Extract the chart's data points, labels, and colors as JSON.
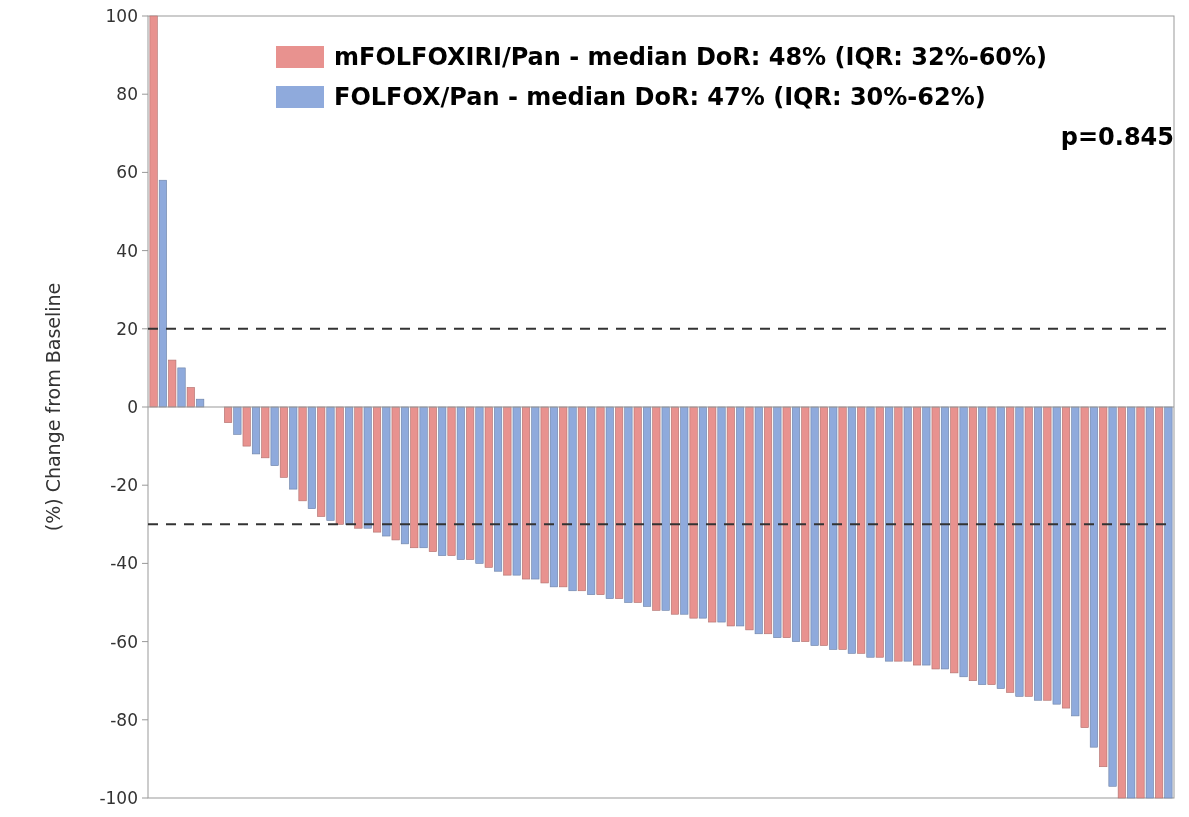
{
  "chart_data": {
    "type": "bar",
    "ylabel": "(%) Change from Baseline",
    "categories": [
      null,
      null,
      null,
      null,
      null,
      null,
      null,
      null,
      null,
      null,
      null,
      null,
      null,
      null,
      null,
      null,
      null,
      null,
      null,
      null,
      null,
      null,
      null,
      null,
      null,
      null,
      null,
      null,
      null,
      null,
      null,
      null,
      null,
      null,
      null,
      null,
      null,
      null,
      null,
      null,
      null,
      null,
      null,
      null,
      null,
      null,
      null,
      null,
      null,
      null,
      null,
      null,
      null,
      null,
      null,
      null,
      null,
      null,
      null,
      null,
      null,
      null,
      null,
      null,
      null,
      null,
      null,
      null,
      null,
      null,
      null,
      null,
      null,
      null,
      null,
      null,
      null,
      null,
      null,
      null,
      null,
      null,
      null,
      null,
      null,
      null,
      null,
      null,
      null,
      null,
      null,
      null,
      null,
      null,
      null,
      null,
      null,
      null,
      null,
      null,
      null,
      null,
      null,
      null,
      null,
      null,
      null,
      null,
      null,
      null
    ],
    "series": [
      {
        "name": "mFOLFOXIRI/Pan - median DoR: 48% (IQR: 32%-60%)",
        "color": "#e8928f",
        "values": [
          100,
          null,
          12,
          null,
          5,
          null,
          0,
          null,
          -4,
          null,
          -10,
          null,
          -13,
          null,
          -18,
          null,
          -24,
          null,
          -28,
          null,
          -30,
          null,
          -31,
          null,
          -32,
          null,
          -34,
          null,
          -36,
          null,
          -37,
          null,
          -38,
          null,
          -39,
          null,
          -41,
          null,
          -43,
          null,
          -44,
          null,
          -45,
          null,
          -46,
          null,
          -47,
          null,
          -48,
          null,
          -49,
          null,
          -50,
          null,
          -52,
          null,
          -53,
          null,
          -54,
          null,
          -55,
          null,
          -56,
          null,
          -57,
          null,
          -58,
          null,
          -59,
          null,
          -60,
          null,
          -61,
          null,
          -62,
          null,
          -63,
          null,
          -64,
          null,
          -65,
          null,
          -66,
          null,
          -67,
          null,
          -68,
          null,
          -70,
          null,
          -71,
          null,
          -73,
          null,
          -74,
          null,
          -75,
          null,
          -77,
          null,
          -82,
          null,
          -92,
          null,
          -100,
          null,
          -100,
          null,
          -100,
          null
        ]
      },
      {
        "name": "FOLFOX/Pan - median DoR: 47% (IQR: 30%-62%)",
        "color": "#8faadc",
        "values": [
          null,
          58,
          null,
          10,
          null,
          2,
          null,
          0,
          null,
          -7,
          null,
          -12,
          null,
          -15,
          null,
          -21,
          null,
          -26,
          null,
          -29,
          null,
          -30,
          null,
          -31,
          null,
          -33,
          null,
          -35,
          null,
          -36,
          null,
          -38,
          null,
          -39,
          null,
          -40,
          null,
          -42,
          null,
          -43,
          null,
          -44,
          null,
          -46,
          null,
          -47,
          null,
          -48,
          null,
          -49,
          null,
          -50,
          null,
          -51,
          null,
          -52,
          null,
          -53,
          null,
          -54,
          null,
          -55,
          null,
          -56,
          null,
          -58,
          null,
          -59,
          null,
          -60,
          null,
          -61,
          null,
          -62,
          null,
          -63,
          null,
          -64,
          null,
          -65,
          null,
          -65,
          null,
          -66,
          null,
          -67,
          null,
          -69,
          null,
          -71,
          null,
          -72,
          null,
          -74,
          null,
          -75,
          null,
          -76,
          null,
          -79,
          null,
          -87,
          null,
          -97,
          null,
          -100,
          null,
          -100,
          null,
          -100
        ]
      }
    ],
    "ylim": [
      -100,
      100
    ],
    "yticks": [
      -100,
      -80,
      -60,
      -40,
      -20,
      0,
      20,
      40,
      60,
      80,
      100
    ],
    "ref_lines": [
      {
        "axis": "y",
        "value": 20,
        "line_style": "dashed",
        "color": "#333333"
      },
      {
        "axis": "y",
        "value": -30,
        "line_style": "dashed",
        "color": "#333333"
      }
    ],
    "annotations": [
      "p=0.845"
    ],
    "legend": "top right",
    "grid": false,
    "tick_labels": "y"
  }
}
